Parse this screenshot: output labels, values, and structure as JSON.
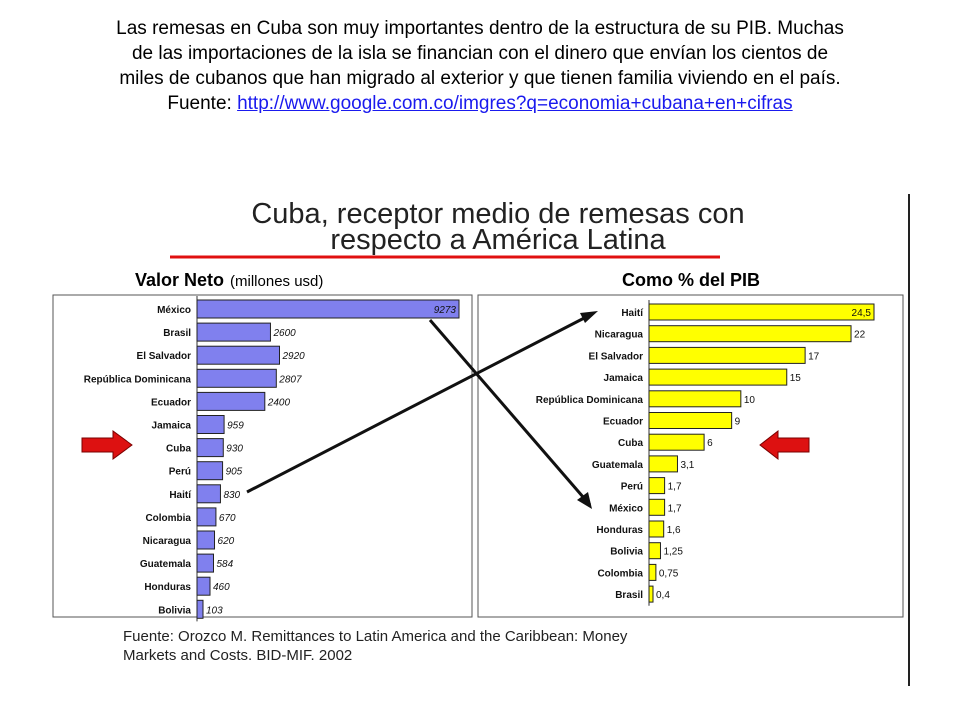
{
  "caption": {
    "line1": "Las remesas en Cuba son muy importantes dentro de la estructura de su PIB. Muchas",
    "line2": "de las importaciones de la isla se financian con el dinero que envían los cientos de",
    "line3": "miles de cubanos que han migrado al exterior y que tienen familia viviendo en el país.",
    "source_prefix": "Fuente: ",
    "source_link": "http://www.google.com.co/imgres?q=economia+cubana+en+cifras"
  },
  "figure": {
    "title_line1": "Cuba, receptor medio de remesas con",
    "title_line2": "respecto a América Latina",
    "source_line1": "Fuente:   Orozco M. Remittances to Latin America and the Caribbean: Money",
    "source_line2": "Markets and Costs. BID-MIF. 2002",
    "colors": {
      "left_bars": "#8080ee",
      "right_bars": "#ffff00",
      "title_underline": "#e01010",
      "arrows": "#dd1111"
    }
  },
  "chart_data": [
    {
      "type": "bar",
      "orientation": "horizontal",
      "title": "Valor Neto",
      "title_suffix": "(millones usd)",
      "categories": [
        "México",
        "Brasil",
        "El Salvador",
        "República Dominicana",
        "Ecuador",
        "Jamaica",
        "Cuba",
        "Perú",
        "Haití",
        "Colombia",
        "Nicaragua",
        "Guatemala",
        "Honduras",
        "Bolivia"
      ],
      "values": [
        9273,
        2600,
        2920,
        2807,
        2400,
        959,
        930,
        905,
        830,
        670,
        620,
        584,
        460,
        103
      ],
      "labels": [
        "9273",
        "2600",
        "2920",
        "2807",
        "2400",
        "959",
        "930",
        "905",
        "830",
        "670",
        "620",
        "584",
        "460",
        "103"
      ],
      "highlight": "Cuba"
    },
    {
      "type": "bar",
      "orientation": "horizontal",
      "title": "Como % del PIB",
      "categories": [
        "Haití",
        "Nicaragua",
        "El Salvador",
        "Jamaica",
        "República Dominicana",
        "Ecuador",
        "Cuba",
        "Guatemala",
        "Perú",
        "México",
        "Honduras",
        "Bolivia",
        "Colombia",
        "Brasil"
      ],
      "values": [
        24.5,
        22,
        17,
        15,
        10,
        9,
        6,
        3.1,
        1.7,
        1.7,
        1.6,
        1.25,
        0.75,
        0.4
      ],
      "labels": [
        "24,5",
        "22",
        "17",
        "15",
        "10",
        "9",
        "6",
        "3,1",
        "1,7",
        "1,7",
        "1,6",
        "1,25",
        "0,75",
        "0,4"
      ],
      "highlight": "Cuba"
    }
  ]
}
